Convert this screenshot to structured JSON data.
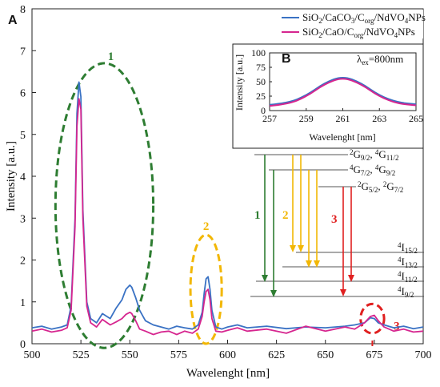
{
  "chart_data": {
    "type": "line",
    "panel": "A",
    "xlabel": "Wavelenght [nm]",
    "ylabel": "Intensity [a.u.]",
    "xlim": [
      500,
      700
    ],
    "ylim": [
      0,
      8
    ],
    "xticks": [
      500,
      525,
      550,
      575,
      600,
      625,
      650,
      675,
      700
    ],
    "yticks": [
      0,
      1,
      2,
      3,
      4,
      5,
      6,
      7,
      8
    ],
    "grid": false,
    "legend_position": "top-right",
    "colors": {
      "series1": "#3a72c4",
      "series2": "#d6268f",
      "region1": "#2e7d32",
      "region2": "#f2b705",
      "region3": "#e02020"
    },
    "series": [
      {
        "name": "SiO₂/CaCO₃/C_org/NdVO₄NPs",
        "x": [
          500,
          505,
          510,
          515,
          518,
          520,
          522,
          523,
          524,
          525,
          526,
          528,
          530,
          533,
          536,
          540,
          543,
          546,
          548,
          550,
          551,
          553,
          555,
          558,
          562,
          566,
          570,
          574,
          578,
          582,
          585,
          587,
          588,
          589,
          590,
          591,
          592,
          594,
          597,
          600,
          605,
          610,
          620,
          630,
          640,
          650,
          660,
          665,
          670,
          673,
          675,
          677,
          680,
          685,
          690,
          695,
          700
        ],
        "y": [
          0.38,
          0.42,
          0.35,
          0.4,
          0.45,
          0.9,
          3.0,
          5.5,
          6.25,
          5.9,
          3.2,
          1.0,
          0.6,
          0.5,
          0.72,
          0.6,
          0.85,
          1.05,
          1.3,
          1.4,
          1.35,
          1.1,
          0.8,
          0.55,
          0.45,
          0.4,
          0.35,
          0.42,
          0.38,
          0.35,
          0.45,
          0.75,
          1.2,
          1.55,
          1.6,
          1.3,
          0.8,
          0.4,
          0.35,
          0.4,
          0.45,
          0.38,
          0.42,
          0.36,
          0.4,
          0.38,
          0.42,
          0.45,
          0.5,
          0.62,
          0.6,
          0.5,
          0.45,
          0.38,
          0.42,
          0.36,
          0.4
        ]
      },
      {
        "name": "SiO₂/CaO/C_org/NdVO₄NPs",
        "x": [
          500,
          505,
          510,
          515,
          518,
          520,
          522,
          523,
          524,
          525,
          526,
          528,
          530,
          533,
          536,
          540,
          543,
          546,
          548,
          550,
          551,
          553,
          555,
          558,
          562,
          566,
          570,
          574,
          578,
          582,
          585,
          587,
          588,
          589,
          590,
          591,
          592,
          594,
          597,
          600,
          605,
          610,
          620,
          630,
          640,
          650,
          660,
          665,
          670,
          673,
          675,
          677,
          680,
          685,
          690,
          695,
          700
        ],
        "y": [
          0.3,
          0.35,
          0.28,
          0.32,
          0.38,
          0.8,
          2.8,
          5.2,
          5.85,
          5.6,
          3.0,
          0.9,
          0.5,
          0.4,
          0.58,
          0.45,
          0.52,
          0.6,
          0.7,
          0.75,
          0.72,
          0.55,
          0.35,
          0.3,
          0.22,
          0.28,
          0.3,
          0.22,
          0.3,
          0.25,
          0.35,
          0.65,
          1.0,
          1.25,
          1.3,
          1.05,
          0.6,
          0.3,
          0.28,
          0.32,
          0.38,
          0.3,
          0.35,
          0.25,
          0.42,
          0.3,
          0.4,
          0.35,
          0.5,
          0.65,
          0.68,
          0.55,
          0.4,
          0.3,
          0.35,
          0.28,
          0.3
        ]
      }
    ],
    "inset": {
      "panel": "B",
      "xlabel": "Wavelenght [nm]",
      "ylabel": "Intensity [a.u.]",
      "annotation": "λex=800nm",
      "xlim": [
        257,
        265
      ],
      "ylim": [
        0,
        100
      ],
      "xticks": [
        257,
        259,
        261,
        263,
        265
      ],
      "yticks": [
        0,
        25,
        50,
        75,
        100
      ],
      "series": [
        {
          "name": "SiO₂/CaCO₃/C_org/NdVO₄NPs",
          "x": [
            257,
            258,
            259,
            260,
            261,
            262,
            263,
            264,
            265
          ],
          "y": [
            10,
            13,
            26,
            48,
            60,
            48,
            26,
            14,
            11
          ]
        },
        {
          "name": "SiO₂/CaO/C_org/NdVO₄NPs",
          "x": [
            257,
            258,
            259,
            260,
            261,
            262,
            263,
            264,
            265
          ],
          "y": [
            8,
            11,
            24,
            46,
            58,
            46,
            24,
            12,
            9
          ]
        }
      ]
    },
    "regions": [
      {
        "label": "1",
        "center_x": 537,
        "center_y": 3.3,
        "rx": 25,
        "ry": 3.4
      },
      {
        "label": "2",
        "center_x": 589,
        "center_y": 1.3,
        "rx": 8,
        "ry": 1.3
      },
      {
        "label": "3",
        "center_x": 674,
        "center_y": 0.6,
        "rx": 6,
        "ry": 0.35
      }
    ],
    "energy_levels": [
      {
        "label_main": "2G",
        "sub": "9/2",
        "sep": ", ",
        "label2": "4G",
        "sub2": "11/2"
      },
      {
        "label_main": "4G",
        "sub": "7/2",
        "sep": ", ",
        "label2": "4G",
        "sub2": "9/2"
      },
      {
        "label_main": "2G",
        "sub": "5/2",
        "sep": ", ",
        "label2": "2G",
        "sub2": "7/2"
      },
      {
        "label_main": "4I",
        "sub": "15/2"
      },
      {
        "label_main": "4I",
        "sub": "13/2"
      },
      {
        "label_main": "4I",
        "sub": "11/2"
      },
      {
        "label_main": "4I",
        "sub": "9/2"
      }
    ],
    "transition_groups": [
      "1",
      "2",
      "3"
    ]
  }
}
